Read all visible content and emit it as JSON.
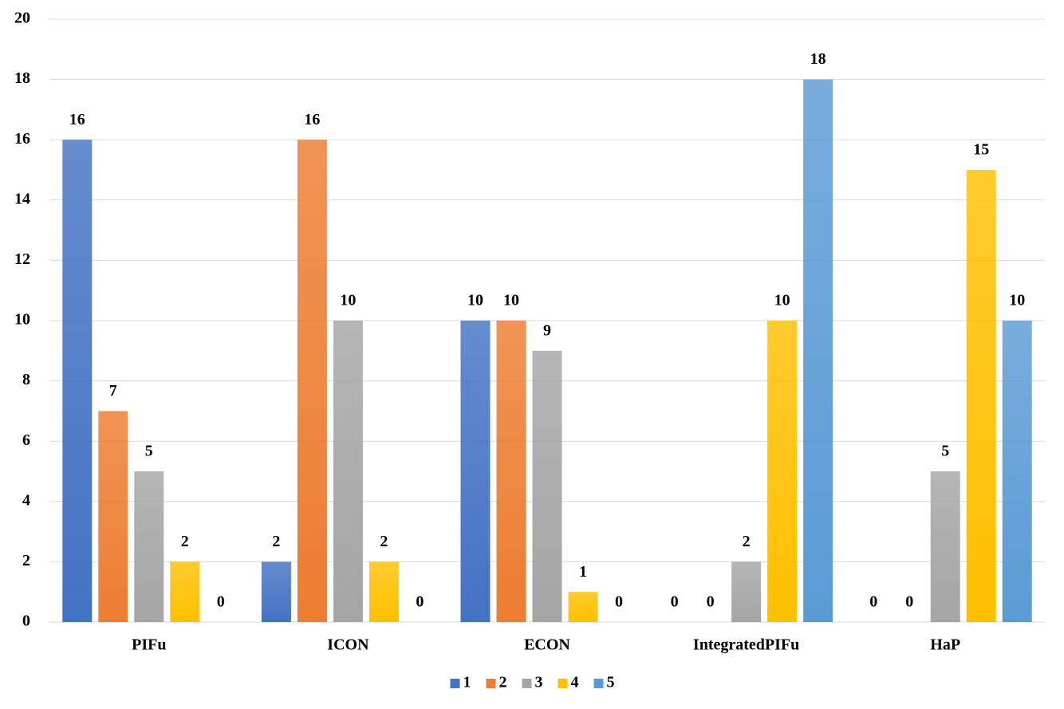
{
  "chart_data": {
    "type": "bar",
    "categories": [
      "PIFu",
      "ICON",
      "ECON",
      "IntegratedPIFu",
      "HaP"
    ],
    "series": [
      {
        "name": "1",
        "color": "#4472c4",
        "values": [
          16,
          2,
          10,
          0,
          0
        ]
      },
      {
        "name": "2",
        "color": "#ed7d31",
        "values": [
          7,
          16,
          10,
          0,
          0
        ]
      },
      {
        "name": "3",
        "color": "#a5a5a5",
        "values": [
          5,
          10,
          9,
          2,
          5
        ]
      },
      {
        "name": "4",
        "color": "#ffc000",
        "values": [
          2,
          2,
          1,
          10,
          15
        ]
      },
      {
        "name": "5",
        "color": "#5b9bd5",
        "values": [
          0,
          0,
          0,
          18,
          10
        ]
      }
    ],
    "ylim": [
      0,
      20
    ],
    "yticks": [
      0,
      2,
      4,
      6,
      8,
      10,
      12,
      14,
      16,
      18,
      20
    ],
    "grid": true,
    "legend": "bottom"
  }
}
